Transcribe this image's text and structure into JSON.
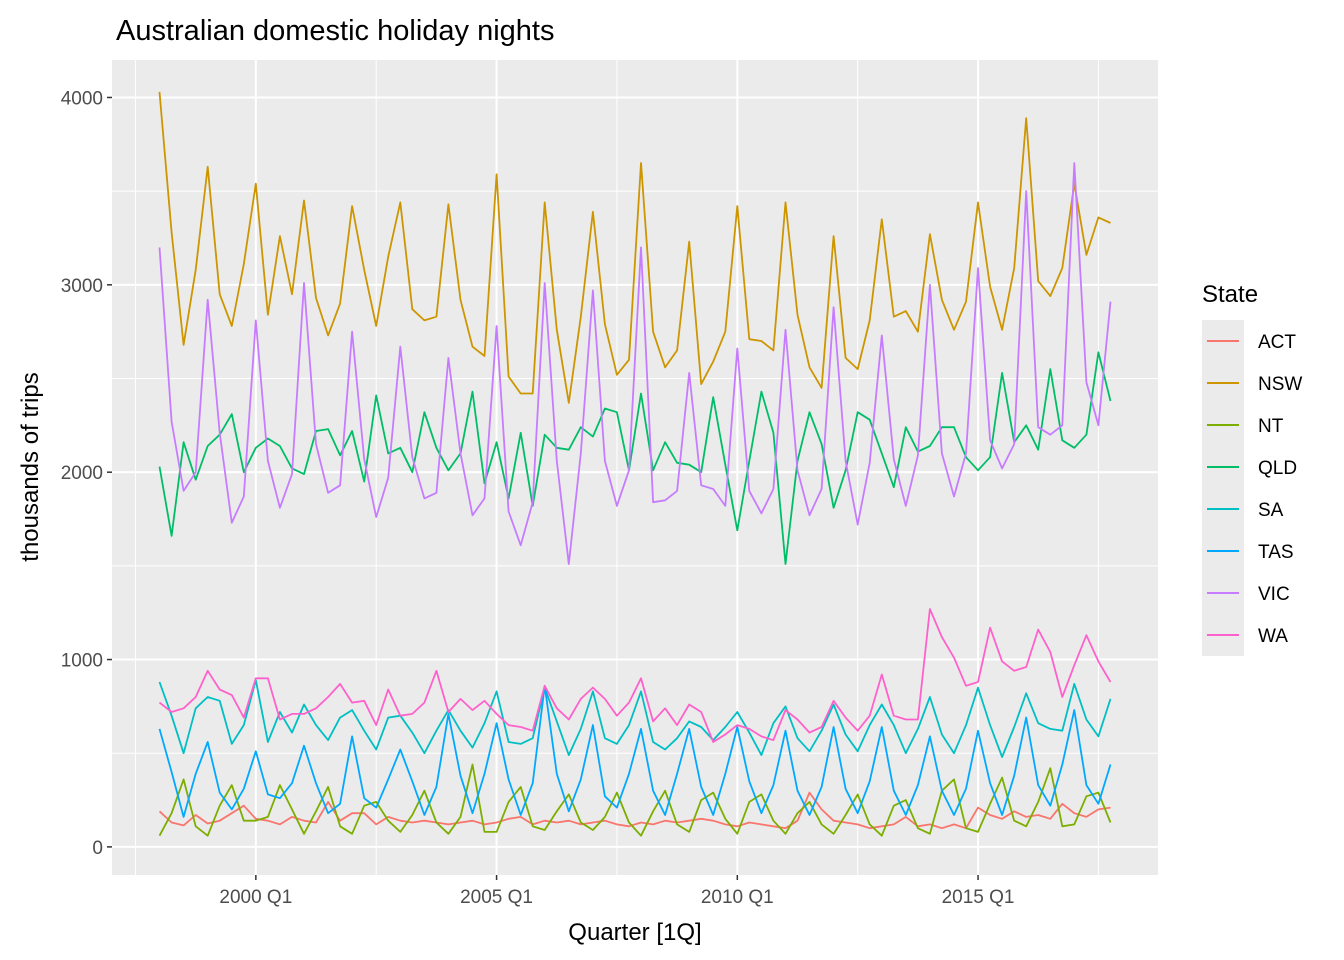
{
  "chart_data": {
    "type": "line",
    "title": "Australian domestic holiday nights",
    "xlabel": "Quarter [1Q]",
    "ylabel": "thousands of trips",
    "x_start": "1998 Q1",
    "x_end": "2017 Q4",
    "x_ticks": [
      {
        "quarter": "2000 Q1",
        "label": "2000 Q1"
      },
      {
        "quarter": "2005 Q1",
        "label": "2005 Q1"
      },
      {
        "quarter": "2010 Q1",
        "label": "2010 Q1"
      },
      {
        "quarter": "2015 Q1",
        "label": "2015 Q1"
      }
    ],
    "y_ticks": [
      0,
      1000,
      2000,
      3000,
      4000
    ],
    "ylim": [
      -150,
      4200
    ],
    "grid": true,
    "legend": {
      "title": "State",
      "position": "right"
    },
    "series": [
      {
        "name": "ACT",
        "color": "#F8766D",
        "values": [
          190,
          130,
          115,
          170,
          125,
          140,
          180,
          220,
          150,
          140,
          120,
          160,
          140,
          130,
          240,
          140,
          180,
          180,
          120,
          160,
          140,
          130,
          140,
          130,
          120,
          130,
          140,
          120,
          130,
          150,
          160,
          120,
          140,
          130,
          140,
          120,
          130,
          140,
          120,
          110,
          130,
          120,
          140,
          130,
          140,
          150,
          140,
          120,
          110,
          130,
          120,
          110,
          100,
          140,
          290,
          200,
          140,
          130,
          120,
          100,
          110,
          120,
          160,
          110,
          120,
          100,
          120,
          100,
          210,
          170,
          150,
          190,
          160,
          170,
          150,
          230,
          180,
          160,
          200,
          210
        ]
      },
      {
        "name": "NSW",
        "color": "#CD9600",
        "values": [
          4030,
          3280,
          2680,
          3080,
          3630,
          2950,
          2780,
          3110,
          3540,
          2840,
          3260,
          2950,
          3450,
          2930,
          2730,
          2900,
          3420,
          3080,
          2780,
          3150,
          3440,
          2870,
          2810,
          2830,
          3430,
          2920,
          2670,
          2620,
          3590,
          2510,
          2420,
          2420,
          3440,
          2760,
          2370,
          2830,
          3390,
          2790,
          2520,
          2600,
          3650,
          2750,
          2560,
          2650,
          3230,
          2470,
          2590,
          2750,
          3420,
          2710,
          2700,
          2650,
          3440,
          2840,
          2560,
          2450,
          3260,
          2610,
          2550,
          2810,
          3350,
          2830,
          2860,
          2750,
          3270,
          2920,
          2760,
          2910,
          3440,
          2990,
          2760,
          3090,
          3890,
          3020,
          2940,
          3090,
          3540,
          3160,
          3360,
          3330
        ]
      },
      {
        "name": "NT",
        "color": "#7CAE00",
        "values": [
          60,
          180,
          360,
          110,
          60,
          220,
          330,
          140,
          140,
          160,
          330,
          200,
          70,
          190,
          320,
          110,
          70,
          220,
          240,
          140,
          80,
          170,
          300,
          130,
          70,
          160,
          440,
          80,
          80,
          240,
          320,
          110,
          90,
          190,
          280,
          130,
          90,
          160,
          290,
          130,
          60,
          190,
          300,
          120,
          80,
          250,
          290,
          150,
          70,
          240,
          280,
          140,
          70,
          180,
          240,
          120,
          70,
          170,
          280,
          120,
          60,
          220,
          250,
          100,
          70,
          300,
          360,
          100,
          80,
          230,
          370,
          140,
          110,
          240,
          420,
          110,
          120,
          270,
          290,
          130
        ]
      },
      {
        "name": "QLD",
        "color": "#00BE67",
        "values": [
          2030,
          1660,
          2160,
          1960,
          2140,
          2200,
          2310,
          2000,
          2130,
          2180,
          2140,
          2020,
          1990,
          2220,
          2230,
          2090,
          2220,
          1950,
          2410,
          2100,
          2130,
          2000,
          2320,
          2130,
          2010,
          2100,
          2430,
          1940,
          2160,
          1860,
          2210,
          1820,
          2200,
          2130,
          2120,
          2240,
          2190,
          2340,
          2320,
          2010,
          2420,
          2010,
          2160,
          2050,
          2040,
          2000,
          2400,
          2040,
          1690,
          2060,
          2430,
          2210,
          1510,
          2060,
          2320,
          2150,
          1810,
          2010,
          2320,
          2280,
          2100,
          1920,
          2240,
          2110,
          2140,
          2240,
          2240,
          2080,
          2010,
          2080,
          2530,
          2160,
          2250,
          2120,
          2550,
          2170,
          2130,
          2200,
          2640,
          2380
        ]
      },
      {
        "name": "SA",
        "color": "#00BFC4",
        "values": [
          880,
          700,
          500,
          740,
          800,
          780,
          550,
          650,
          890,
          560,
          720,
          610,
          760,
          650,
          570,
          690,
          730,
          620,
          520,
          690,
          700,
          610,
          500,
          620,
          730,
          620,
          530,
          660,
          830,
          560,
          550,
          580,
          850,
          670,
          490,
          630,
          830,
          580,
          550,
          650,
          830,
          560,
          520,
          580,
          670,
          640,
          570,
          640,
          720,
          610,
          490,
          660,
          750,
          580,
          510,
          620,
          760,
          600,
          510,
          650,
          760,
          650,
          500,
          630,
          800,
          600,
          500,
          650,
          850,
          650,
          480,
          640,
          820,
          660,
          630,
          620,
          870,
          680,
          590,
          790
        ]
      },
      {
        "name": "TAS",
        "color": "#00A9FF",
        "values": [
          630,
          400,
          160,
          390,
          560,
          290,
          200,
          310,
          510,
          280,
          260,
          340,
          540,
          340,
          180,
          230,
          590,
          260,
          210,
          360,
          520,
          350,
          170,
          320,
          710,
          380,
          180,
          390,
          660,
          360,
          170,
          340,
          860,
          390,
          190,
          360,
          650,
          270,
          210,
          390,
          630,
          300,
          170,
          390,
          630,
          320,
          170,
          390,
          640,
          350,
          180,
          330,
          620,
          300,
          170,
          320,
          640,
          310,
          180,
          350,
          640,
          300,
          170,
          330,
          590,
          300,
          170,
          310,
          620,
          340,
          170,
          380,
          690,
          330,
          220,
          440,
          730,
          330,
          230,
          440
        ]
      },
      {
        "name": "VIC",
        "color": "#C77CFF",
        "values": [
          3200,
          2270,
          1900,
          2000,
          2920,
          2210,
          1730,
          1870,
          2810,
          2060,
          1810,
          1990,
          3010,
          2150,
          1890,
          1930,
          2750,
          2070,
          1760,
          1970,
          2670,
          2080,
          1860,
          1890,
          2610,
          2100,
          1770,
          1860,
          2780,
          1790,
          1610,
          1840,
          3010,
          2060,
          1510,
          2100,
          2970,
          2060,
          1820,
          2010,
          3200,
          1840,
          1850,
          1900,
          2530,
          1930,
          1910,
          1820,
          2660,
          1900,
          1780,
          1910,
          2760,
          2010,
          1770,
          1910,
          2880,
          2060,
          1720,
          2050,
          2730,
          2070,
          1820,
          2090,
          3000,
          2100,
          1870,
          2100,
          3090,
          2170,
          2020,
          2150,
          3500,
          2240,
          2200,
          2250,
          3650,
          2480,
          2250,
          2910
        ]
      },
      {
        "name": "WA",
        "color": "#FF61CC",
        "values": [
          770,
          720,
          740,
          800,
          940,
          840,
          810,
          690,
          900,
          900,
          680,
          710,
          710,
          740,
          800,
          870,
          770,
          780,
          650,
          840,
          700,
          710,
          770,
          940,
          720,
          790,
          730,
          780,
          710,
          650,
          640,
          620,
          860,
          740,
          680,
          790,
          850,
          790,
          700,
          770,
          900,
          670,
          740,
          650,
          760,
          720,
          560,
          600,
          650,
          630,
          590,
          570,
          730,
          680,
          610,
          640,
          780,
          690,
          620,
          700,
          920,
          700,
          680,
          680,
          1270,
          1120,
          1010,
          860,
          880,
          1170,
          990,
          940,
          960,
          1160,
          1040,
          800,
          970,
          1130,
          990,
          880
        ]
      }
    ]
  }
}
